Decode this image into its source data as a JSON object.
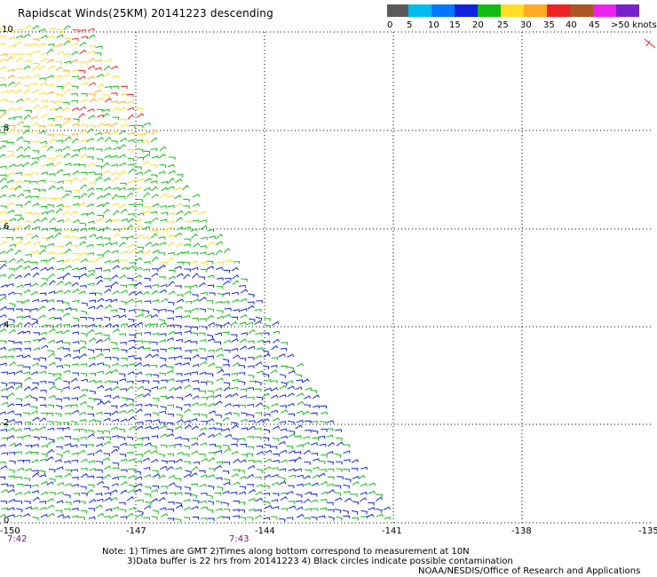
{
  "title": "Rapidscat Winds(25KM) 20141223 descending",
  "legend": {
    "colors": [
      "#5a5a5a",
      "#00bbee",
      "#0077ff",
      "#1122dd",
      "#11bb11",
      "#ffdd22",
      "#ffaa22",
      "#ee2222",
      "#aa5522",
      "#ee22ee",
      "#7722cc"
    ],
    "labels": [
      "0",
      "5",
      "10",
      "15",
      "20",
      "25",
      "30",
      "35",
      "40",
      "45",
      ">50 knots"
    ]
  },
  "axes": {
    "lon_ticks": [
      "-150",
      "-147",
      "-144",
      "-141",
      "-138",
      "-135"
    ],
    "lat_ticks": [
      "0",
      "2",
      "4",
      "6",
      "8",
      "10"
    ]
  },
  "time_labels": [
    {
      "text": "7:42"
    },
    {
      "text": "7:43"
    }
  ],
  "notes": {
    "line1": "Note: 1) Times are GMT 2)Times along bottom correspond to measurement at 10N",
    "line2": "3)Data buffer is 22 hrs from 20141223 4) Black circles indicate possible contamination",
    "line3": "NOAA/NESDIS/Office of Research and Applications"
  }
}
